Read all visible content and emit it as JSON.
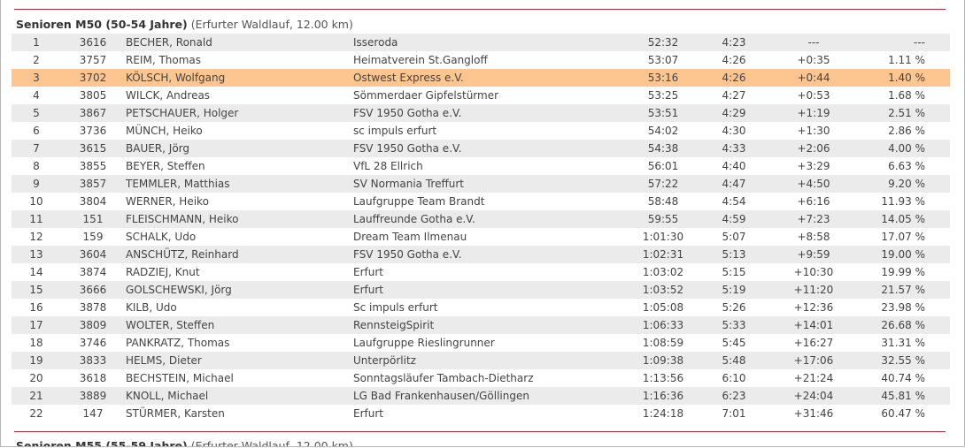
{
  "colors": {
    "accent_line": "#b3283b",
    "row_alt": "#ebebeb",
    "row_highlight": "#fdc590"
  },
  "section": {
    "title": "Senioren M50 (50-54 Jahre)",
    "subtitle": "(Erfurter Waldlauf, 12.00 km)",
    "highlighted_rank": "3",
    "rows": [
      {
        "rank": "1",
        "bib": "3616",
        "name": "BECHER, Ronald",
        "club": "Isseroda",
        "time": "52:32",
        "pace": "4:23",
        "diff": "---",
        "pct": "---"
      },
      {
        "rank": "2",
        "bib": "3757",
        "name": "REIM, Thomas",
        "club": "Heimatverein St.Gangloff",
        "time": "53:07",
        "pace": "4:26",
        "diff": "+0:35",
        "pct": "1.11 %"
      },
      {
        "rank": "3",
        "bib": "3702",
        "name": "KÖLSCH, Wolfgang",
        "club": "Ostwest Express e.V.",
        "time": "53:16",
        "pace": "4:26",
        "diff": "+0:44",
        "pct": "1.40 %"
      },
      {
        "rank": "4",
        "bib": "3805",
        "name": "WILCK, Andreas",
        "club": "Sömmerdaer Gipfelstürmer",
        "time": "53:25",
        "pace": "4:27",
        "diff": "+0:53",
        "pct": "1.68 %"
      },
      {
        "rank": "5",
        "bib": "3867",
        "name": "PETSCHAUER, Holger",
        "club": "FSV 1950 Gotha e.V.",
        "time": "53:51",
        "pace": "4:29",
        "diff": "+1:19",
        "pct": "2.51 %"
      },
      {
        "rank": "6",
        "bib": "3736",
        "name": "MÜNCH, Heiko",
        "club": "sc impuls erfurt",
        "time": "54:02",
        "pace": "4:30",
        "diff": "+1:30",
        "pct": "2.86 %"
      },
      {
        "rank": "7",
        "bib": "3615",
        "name": "BAUER, Jörg",
        "club": "FSV 1950 Gotha e.V.",
        "time": "54:38",
        "pace": "4:33",
        "diff": "+2:06",
        "pct": "4.00 %"
      },
      {
        "rank": "8",
        "bib": "3855",
        "name": "BEYER, Steffen",
        "club": "VfL 28 Ellrich",
        "time": "56:01",
        "pace": "4:40",
        "diff": "+3:29",
        "pct": "6.63 %"
      },
      {
        "rank": "9",
        "bib": "3857",
        "name": "TEMMLER, Matthias",
        "club": "SV Normania Treffurt",
        "time": "57:22",
        "pace": "4:47",
        "diff": "+4:50",
        "pct": "9.20 %"
      },
      {
        "rank": "10",
        "bib": "3804",
        "name": "WERNER, Heiko",
        "club": "Laufgruppe Team Brandt",
        "time": "58:48",
        "pace": "4:54",
        "diff": "+6:16",
        "pct": "11.93 %"
      },
      {
        "rank": "11",
        "bib": "151",
        "name": "FLEISCHMANN, Heiko",
        "club": "Lauffreunde Gotha e.V.",
        "time": "59:55",
        "pace": "4:59",
        "diff": "+7:23",
        "pct": "14.05 %"
      },
      {
        "rank": "12",
        "bib": "159",
        "name": "SCHALK, Udo",
        "club": "Dream Team Ilmenau",
        "time": "1:01:30",
        "pace": "5:07",
        "diff": "+8:58",
        "pct": "17.07 %"
      },
      {
        "rank": "13",
        "bib": "3604",
        "name": "ANSCHÜTZ, Reinhard",
        "club": "FSV 1950 Gotha e.V.",
        "time": "1:02:31",
        "pace": "5:13",
        "diff": "+9:59",
        "pct": "19.00 %"
      },
      {
        "rank": "14",
        "bib": "3874",
        "name": "RADZIEJ, Knut",
        "club": "Erfurt",
        "time": "1:03:02",
        "pace": "5:15",
        "diff": "+10:30",
        "pct": "19.99 %"
      },
      {
        "rank": "15",
        "bib": "3666",
        "name": "GOLSCHEWSKI, Jörg",
        "club": "Erfurt",
        "time": "1:03:52",
        "pace": "5:19",
        "diff": "+11:20",
        "pct": "21.57 %"
      },
      {
        "rank": "16",
        "bib": "3878",
        "name": "KILB, Udo",
        "club": "Sc impuls erfurt",
        "time": "1:05:08",
        "pace": "5:26",
        "diff": "+12:36",
        "pct": "23.98 %"
      },
      {
        "rank": "17",
        "bib": "3809",
        "name": "WOLTER, Steffen",
        "club": "RennsteigSpirit",
        "time": "1:06:33",
        "pace": "5:33",
        "diff": "+14:01",
        "pct": "26.68 %"
      },
      {
        "rank": "18",
        "bib": "3746",
        "name": "PANKRATZ, Thomas",
        "club": "Laufgruppe Rieslingrunner",
        "time": "1:08:59",
        "pace": "5:45",
        "diff": "+16:27",
        "pct": "31.31 %"
      },
      {
        "rank": "19",
        "bib": "3833",
        "name": "HELMS, Dieter",
        "club": "Unterpörlitz",
        "time": "1:09:38",
        "pace": "5:48",
        "diff": "+17:06",
        "pct": "32.55 %"
      },
      {
        "rank": "20",
        "bib": "3618",
        "name": "BECHSTEIN, Michael",
        "club": "Sonntagsläufer Tambach-Dietharz",
        "time": "1:13:56",
        "pace": "6:10",
        "diff": "+21:24",
        "pct": "40.74 %"
      },
      {
        "rank": "21",
        "bib": "3889",
        "name": "KNOLL, Michael",
        "club": "LG Bad Frankenhausen/Göllingen",
        "time": "1:16:36",
        "pace": "6:23",
        "diff": "+24:04",
        "pct": "45.81 %"
      },
      {
        "rank": "22",
        "bib": "147",
        "name": "STÜRMER, Karsten",
        "club": "Erfurt",
        "time": "1:24:18",
        "pace": "7:01",
        "diff": "+31:46",
        "pct": "60.47 %"
      }
    ]
  },
  "next_section": {
    "title": "Senioren M55 (55-59 Jahre)",
    "subtitle": "(Erfurter Waldlauf, 12.00 km)"
  }
}
